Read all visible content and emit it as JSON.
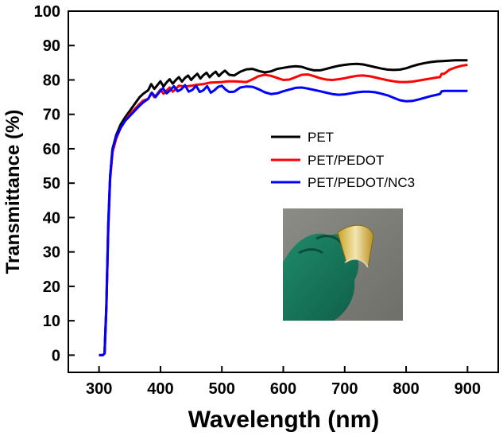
{
  "chart_data": {
    "type": "line",
    "title": "",
    "xlabel": "Wavelength (nm)",
    "ylabel": "Transmittance (%)",
    "xlim": [
      250,
      950
    ],
    "ylim": [
      -5,
      100
    ],
    "xticks": [
      300,
      400,
      500,
      600,
      700,
      800,
      900
    ],
    "yticks": [
      0,
      10,
      20,
      30,
      40,
      50,
      60,
      70,
      80,
      90,
      100
    ],
    "legend_position": "center-right",
    "series": [
      {
        "name": "PET",
        "color": "#000000",
        "points": [
          [
            300,
            0
          ],
          [
            306,
            0
          ],
          [
            309,
            0.5
          ],
          [
            312,
            15
          ],
          [
            315,
            38
          ],
          [
            318,
            52
          ],
          [
            322,
            60
          ],
          [
            328,
            64
          ],
          [
            335,
            67
          ],
          [
            342,
            69
          ],
          [
            350,
            71
          ],
          [
            358,
            73
          ],
          [
            366,
            75
          ],
          [
            372,
            76
          ],
          [
            380,
            77
          ],
          [
            385,
            78.8
          ],
          [
            390,
            77.4
          ],
          [
            395,
            78.5
          ],
          [
            400,
            79.6
          ],
          [
            405,
            78.1
          ],
          [
            410,
            79.3
          ],
          [
            415,
            80.2
          ],
          [
            420,
            78.9
          ],
          [
            425,
            80
          ],
          [
            430,
            80.8
          ],
          [
            435,
            79.5
          ],
          [
            440,
            80.6
          ],
          [
            445,
            81.3
          ],
          [
            450,
            80
          ],
          [
            455,
            81
          ],
          [
            460,
            81.8
          ],
          [
            465,
            80.4
          ],
          [
            470,
            81.4
          ],
          [
            475,
            82.1
          ],
          [
            480,
            80.8
          ],
          [
            485,
            81.7
          ],
          [
            490,
            82.4
          ],
          [
            495,
            81.1
          ],
          [
            500,
            82
          ],
          [
            505,
            82.7
          ],
          [
            512,
            81.5
          ],
          [
            520,
            81.3
          ],
          [
            530,
            82.4
          ],
          [
            540,
            83.1
          ],
          [
            550,
            83.2
          ],
          [
            560,
            82.6
          ],
          [
            570,
            82.2
          ],
          [
            580,
            82.5
          ],
          [
            590,
            83.2
          ],
          [
            600,
            83.5
          ],
          [
            610,
            83.8
          ],
          [
            620,
            84
          ],
          [
            630,
            83.8
          ],
          [
            640,
            83.2
          ],
          [
            650,
            82.8
          ],
          [
            660,
            82.8
          ],
          [
            670,
            83.2
          ],
          [
            680,
            83.7
          ],
          [
            690,
            84.1
          ],
          [
            700,
            84.4
          ],
          [
            710,
            84.6
          ],
          [
            720,
            84.7
          ],
          [
            730,
            84.5
          ],
          [
            740,
            84.1
          ],
          [
            750,
            83.7
          ],
          [
            760,
            83.3
          ],
          [
            770,
            83
          ],
          [
            780,
            82.9
          ],
          [
            790,
            83
          ],
          [
            800,
            83.4
          ],
          [
            810,
            84
          ],
          [
            820,
            84.5
          ],
          [
            830,
            84.9
          ],
          [
            840,
            85.2
          ],
          [
            850,
            85.4
          ],
          [
            860,
            85.5
          ],
          [
            870,
            85.6
          ],
          [
            880,
            85.7
          ],
          [
            890,
            85.7
          ],
          [
            900,
            85.7
          ]
        ]
      },
      {
        "name": "PET/PEDOT",
        "color": "#ff0000",
        "points": [
          [
            300,
            0
          ],
          [
            306,
            0
          ],
          [
            309,
            0.5
          ],
          [
            312,
            14
          ],
          [
            315,
            36
          ],
          [
            318,
            51
          ],
          [
            322,
            59
          ],
          [
            328,
            63
          ],
          [
            335,
            66
          ],
          [
            342,
            68
          ],
          [
            350,
            70
          ],
          [
            358,
            71.5
          ],
          [
            366,
            73
          ],
          [
            372,
            74
          ],
          [
            380,
            74.5
          ],
          [
            385,
            76.2
          ],
          [
            390,
            75
          ],
          [
            395,
            76
          ],
          [
            400,
            77.2
          ],
          [
            405,
            76
          ],
          [
            410,
            76.9
          ],
          [
            415,
            77.8
          ],
          [
            420,
            76.6
          ],
          [
            425,
            77.4
          ],
          [
            430,
            78.3
          ],
          [
            440,
            78.1
          ],
          [
            450,
            78.3
          ],
          [
            460,
            78.6
          ],
          [
            470,
            78.8
          ],
          [
            480,
            79.2
          ],
          [
            490,
            79.3
          ],
          [
            500,
            79.4
          ],
          [
            510,
            79.6
          ],
          [
            520,
            79.6
          ],
          [
            530,
            79.5
          ],
          [
            540,
            79.4
          ],
          [
            550,
            80.2
          ],
          [
            560,
            81.1
          ],
          [
            570,
            81.5
          ],
          [
            580,
            81.2
          ],
          [
            590,
            80.6
          ],
          [
            600,
            80
          ],
          [
            610,
            80.1
          ],
          [
            620,
            80.8
          ],
          [
            630,
            81.5
          ],
          [
            640,
            81.6
          ],
          [
            650,
            81.1
          ],
          [
            660,
            80.5
          ],
          [
            670,
            80.1
          ],
          [
            680,
            80
          ],
          [
            690,
            80.2
          ],
          [
            700,
            80.5
          ],
          [
            710,
            80.9
          ],
          [
            720,
            81.2
          ],
          [
            730,
            81.3
          ],
          [
            740,
            81.1
          ],
          [
            750,
            80.7
          ],
          [
            760,
            80.3
          ],
          [
            770,
            79.9
          ],
          [
            780,
            79.6
          ],
          [
            790,
            79.4
          ],
          [
            800,
            79.4
          ],
          [
            810,
            79.5
          ],
          [
            820,
            79.8
          ],
          [
            830,
            80.1
          ],
          [
            840,
            80.4
          ],
          [
            850,
            80.7
          ],
          [
            855,
            80.8
          ],
          [
            858,
            81.8
          ],
          [
            862,
            81.8
          ],
          [
            866,
            82.3
          ],
          [
            870,
            82.9
          ],
          [
            880,
            83.6
          ],
          [
            890,
            84.1
          ],
          [
            900,
            84.4
          ]
        ]
      },
      {
        "name": "PET/PEDOT/NC3",
        "color": "#0000ff",
        "points": [
          [
            300,
            0
          ],
          [
            306,
            0
          ],
          [
            309,
            0.5
          ],
          [
            312,
            14
          ],
          [
            315,
            37
          ],
          [
            318,
            52
          ],
          [
            322,
            60
          ],
          [
            328,
            63.5
          ],
          [
            335,
            66
          ],
          [
            342,
            68
          ],
          [
            350,
            69.5
          ],
          [
            358,
            71
          ],
          [
            366,
            72.5
          ],
          [
            372,
            73.5
          ],
          [
            380,
            74.5
          ],
          [
            386,
            76.3
          ],
          [
            392,
            75
          ],
          [
            398,
            76.4
          ],
          [
            404,
            77.6
          ],
          [
            410,
            76.1
          ],
          [
            416,
            77
          ],
          [
            422,
            78.2
          ],
          [
            428,
            76.7
          ],
          [
            434,
            77.3
          ],
          [
            440,
            78.5
          ],
          [
            446,
            76.6
          ],
          [
            452,
            77.1
          ],
          [
            458,
            78.3
          ],
          [
            464,
            76.5
          ],
          [
            470,
            77
          ],
          [
            476,
            78.2
          ],
          [
            482,
            76.3
          ],
          [
            488,
            77
          ],
          [
            494,
            78
          ],
          [
            500,
            78.3
          ],
          [
            506,
            77.2
          ],
          [
            512,
            76.5
          ],
          [
            520,
            76.6
          ],
          [
            530,
            77.8
          ],
          [
            540,
            78.1
          ],
          [
            550,
            78
          ],
          [
            560,
            77.3
          ],
          [
            570,
            76.4
          ],
          [
            580,
            75.9
          ],
          [
            590,
            76.1
          ],
          [
            600,
            76.7
          ],
          [
            610,
            77.2
          ],
          [
            620,
            77.7
          ],
          [
            630,
            77.8
          ],
          [
            640,
            77.5
          ],
          [
            650,
            77.1
          ],
          [
            660,
            76.7
          ],
          [
            670,
            76.3
          ],
          [
            680,
            75.9
          ],
          [
            690,
            75.7
          ],
          [
            700,
            75.8
          ],
          [
            710,
            76.1
          ],
          [
            720,
            76.4
          ],
          [
            730,
            76.6
          ],
          [
            740,
            76.6
          ],
          [
            750,
            76.4
          ],
          [
            760,
            76
          ],
          [
            770,
            75.5
          ],
          [
            780,
            74.8
          ],
          [
            790,
            74.1
          ],
          [
            800,
            73.8
          ],
          [
            810,
            73.9
          ],
          [
            820,
            74.3
          ],
          [
            830,
            74.8
          ],
          [
            840,
            75.3
          ],
          [
            850,
            75.7
          ],
          [
            855,
            75.9
          ],
          [
            858,
            76.7
          ],
          [
            862,
            76.8
          ],
          [
            870,
            76.8
          ],
          [
            880,
            76.8
          ],
          [
            890,
            76.8
          ],
          [
            900,
            76.8
          ]
        ]
      }
    ]
  },
  "inset": {
    "photo_subject": "gloved-hand-holding-bent-flexible-film",
    "colors": {
      "glove": "#1f8a6a",
      "film": "#c9a227",
      "background": "#8c8c86"
    }
  }
}
